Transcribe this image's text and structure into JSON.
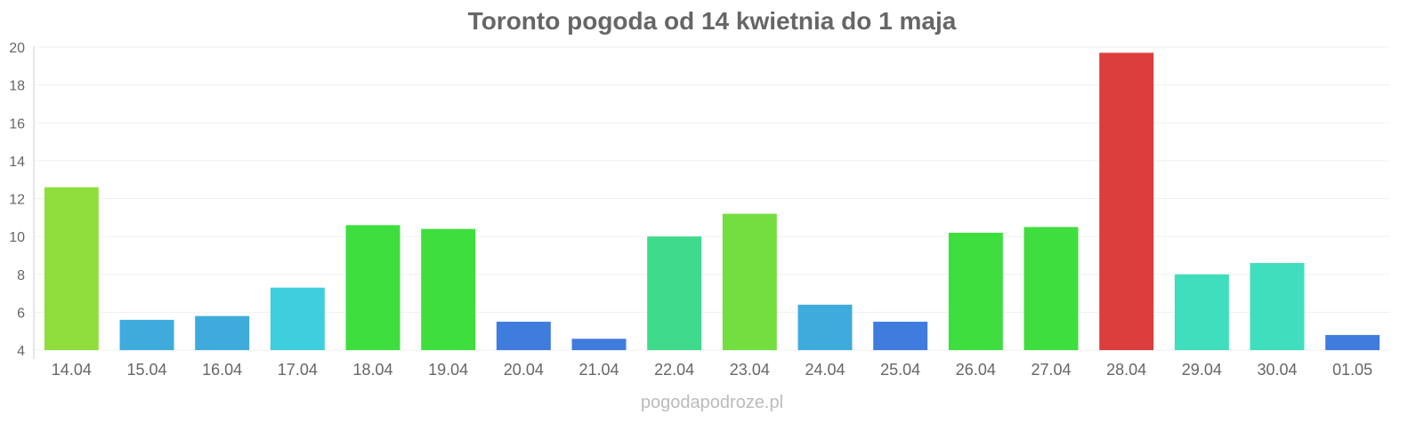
{
  "chart_data": {
    "type": "bar",
    "title": "Toronto pogoda od 14 kwietnia do 1 maja",
    "xlabel": "",
    "ylabel": "",
    "ylim": [
      4,
      20
    ],
    "yticks": [
      4,
      6,
      8,
      10,
      12,
      14,
      16,
      18,
      20
    ],
    "grid": true,
    "legend": "none",
    "categories": [
      "14.04",
      "15.04",
      "16.04",
      "17.04",
      "18.04",
      "19.04",
      "20.04",
      "21.04",
      "22.04",
      "23.04",
      "24.04",
      "25.04",
      "26.04",
      "27.04",
      "28.04",
      "29.04",
      "30.04",
      "01.05"
    ],
    "values": [
      12.6,
      5.6,
      5.8,
      7.3,
      10.6,
      10.4,
      5.5,
      4.6,
      10.0,
      11.2,
      6.4,
      5.5,
      10.2,
      10.5,
      19.7,
      8.0,
      8.6,
      4.8
    ],
    "colors": [
      "#8adc33",
      "#35a7da",
      "#35a7da",
      "#35cbdc",
      "#35dc35",
      "#35dc35",
      "#3575dc",
      "#3575dc",
      "#35d886",
      "#6cdc35",
      "#35a7da",
      "#3575dc",
      "#35dc35",
      "#35dc35",
      "#da3434",
      "#35dcb8",
      "#35dcb8",
      "#3575dc"
    ]
  },
  "watermark": "pogodapodroze.pl"
}
